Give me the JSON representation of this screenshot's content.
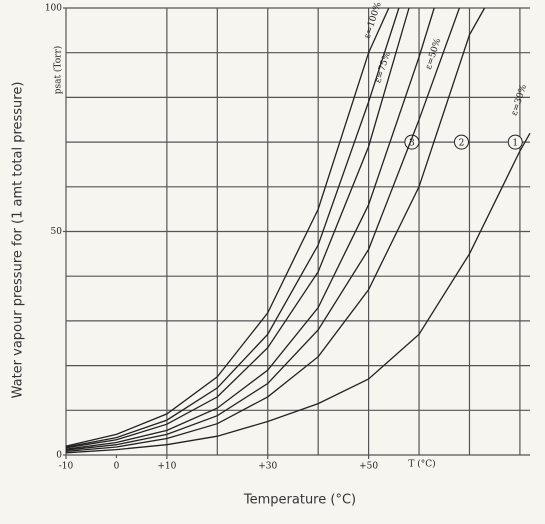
{
  "chart_data": {
    "type": "line",
    "ylabel": "Water vapour pressure for (1 amt total pressure)",
    "xlabel": "Temperature (°C)",
    "ylabel_inner": "psat (Torr)",
    "xlabel_inner": "T (°C)",
    "xlim": [
      -10,
      82
    ],
    "ylim": [
      0,
      100
    ],
    "xticks": [
      -10,
      0,
      {
        "value": 10,
        "label": "+10"
      },
      {
        "value": 30,
        "label": "+30"
      },
      {
        "value": 50,
        "label": "+50"
      }
    ],
    "yticks": [
      0,
      50,
      100
    ],
    "xgrid": [
      -10,
      10,
      20,
      30,
      40,
      50,
      60,
      70,
      80
    ],
    "ygrid": [
      10,
      20,
      30,
      40,
      50,
      60,
      70,
      80,
      90,
      100
    ],
    "grid": true,
    "series": [
      {
        "name": "ε=100%",
        "color": "#222",
        "x": [
          -10,
          0,
          10,
          20,
          30,
          40,
          50,
          54
        ],
        "values": [
          2,
          4.6,
          9.2,
          17.5,
          31.8,
          55,
          90,
          100
        ]
      },
      {
        "name": "3",
        "color": "#222",
        "x": [
          -10,
          0,
          10,
          20,
          30,
          40,
          50,
          56
        ],
        "values": [
          1.8,
          3.9,
          7.8,
          15,
          27,
          47,
          79,
          100
        ]
      },
      {
        "name": "ε=75%",
        "color": "#222",
        "x": [
          -10,
          0,
          10,
          20,
          30,
          40,
          50,
          58
        ],
        "values": [
          1.6,
          3.4,
          6.9,
          13,
          24,
          41,
          69,
          100
        ]
      },
      {
        "name": "2",
        "color": "#222",
        "x": [
          -10,
          0,
          10,
          20,
          30,
          40,
          50,
          60,
          63
        ],
        "values": [
          1.3,
          2.8,
          5.5,
          10.5,
          19,
          33,
          56,
          89,
          100
        ]
      },
      {
        "name": "ε=50%",
        "color": "#222",
        "x": [
          -10,
          0,
          10,
          20,
          30,
          40,
          50,
          60,
          68
        ],
        "values": [
          1.1,
          2.3,
          4.6,
          8.8,
          16,
          28,
          46,
          75,
          100
        ]
      },
      {
        "name": "1",
        "color": "#222",
        "x": [
          -10,
          0,
          10,
          20,
          30,
          40,
          50,
          60,
          70,
          73
        ],
        "values": [
          0.8,
          1.8,
          3.7,
          7,
          13,
          22,
          37,
          60,
          94,
          100
        ]
      },
      {
        "name": "ε=30%",
        "color": "#222",
        "x": [
          -10,
          0,
          10,
          20,
          30,
          40,
          50,
          60,
          70,
          80,
          82
        ],
        "values": [
          0.5,
          1.2,
          2.3,
          4.2,
          7.5,
          11.5,
          17,
          27,
          45,
          68,
          72
        ]
      }
    ]
  }
}
